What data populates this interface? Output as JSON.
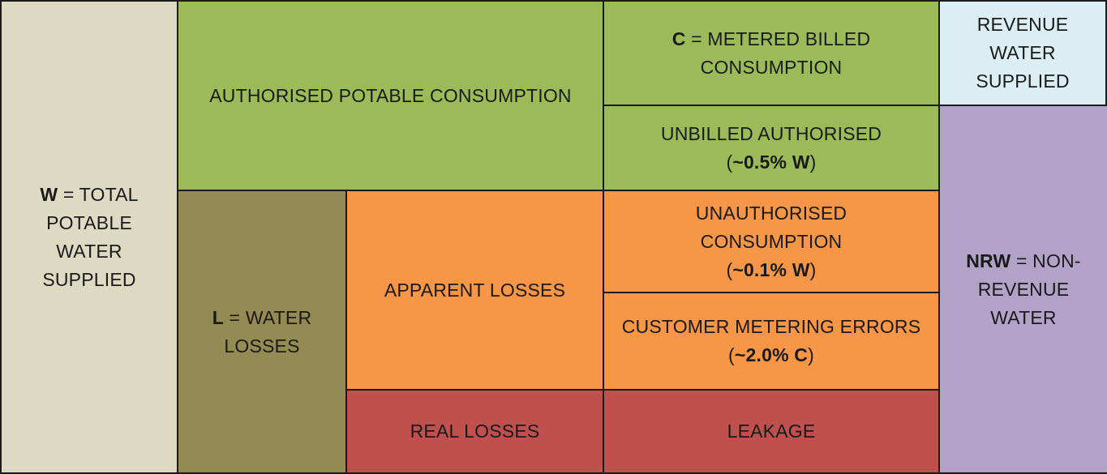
{
  "colors": {
    "total": "#ddd9c3",
    "authorised": "#9bbb59",
    "water_losses": "#948a54",
    "apparent": "#f79646",
    "real": "#c0504d",
    "revenue": "#dbeef4",
    "nrw": "#b2a2c7",
    "border": "#1a1a1a"
  },
  "total_supplied": {
    "symbol": "W",
    "line1_rest": " = TOTAL",
    "line2": "POTABLE",
    "line3": "WATER",
    "line4": "SUPPLIED"
  },
  "authorised_consumption": {
    "label": "AUTHORISED POTABLE CONSUMPTION"
  },
  "metered_billed": {
    "symbol": "C",
    "line1_rest": " = METERED BILLED",
    "line2": "CONSUMPTION"
  },
  "unbilled_authorised": {
    "line1": "UNBILLED AUTHORISED",
    "open": "(",
    "value": "~0.5% W",
    "close": ")"
  },
  "water_losses": {
    "symbol": "L",
    "line1_rest": " = WATER",
    "line2": "LOSSES"
  },
  "apparent_losses": {
    "label": "APPARENT LOSSES"
  },
  "unauthorised_consumption": {
    "line1": "UNAUTHORISED",
    "line2": "CONSUMPTION",
    "open": "(",
    "value": "~0.1% W",
    "close": ")"
  },
  "metering_errors": {
    "line1": "CUSTOMER METERING ERRORS",
    "open": "(",
    "value": "~2.0% C",
    "close": ")"
  },
  "real_losses": {
    "label": "REAL LOSSES"
  },
  "leakage": {
    "label": "LEAKAGE"
  },
  "revenue_water": {
    "line1": "REVENUE",
    "line2": "WATER",
    "line3": "SUPPLIED"
  },
  "non_revenue_water": {
    "symbol": "NRW",
    "line1_rest": " = NON-",
    "line2": "REVENUE",
    "line3": "WATER"
  }
}
